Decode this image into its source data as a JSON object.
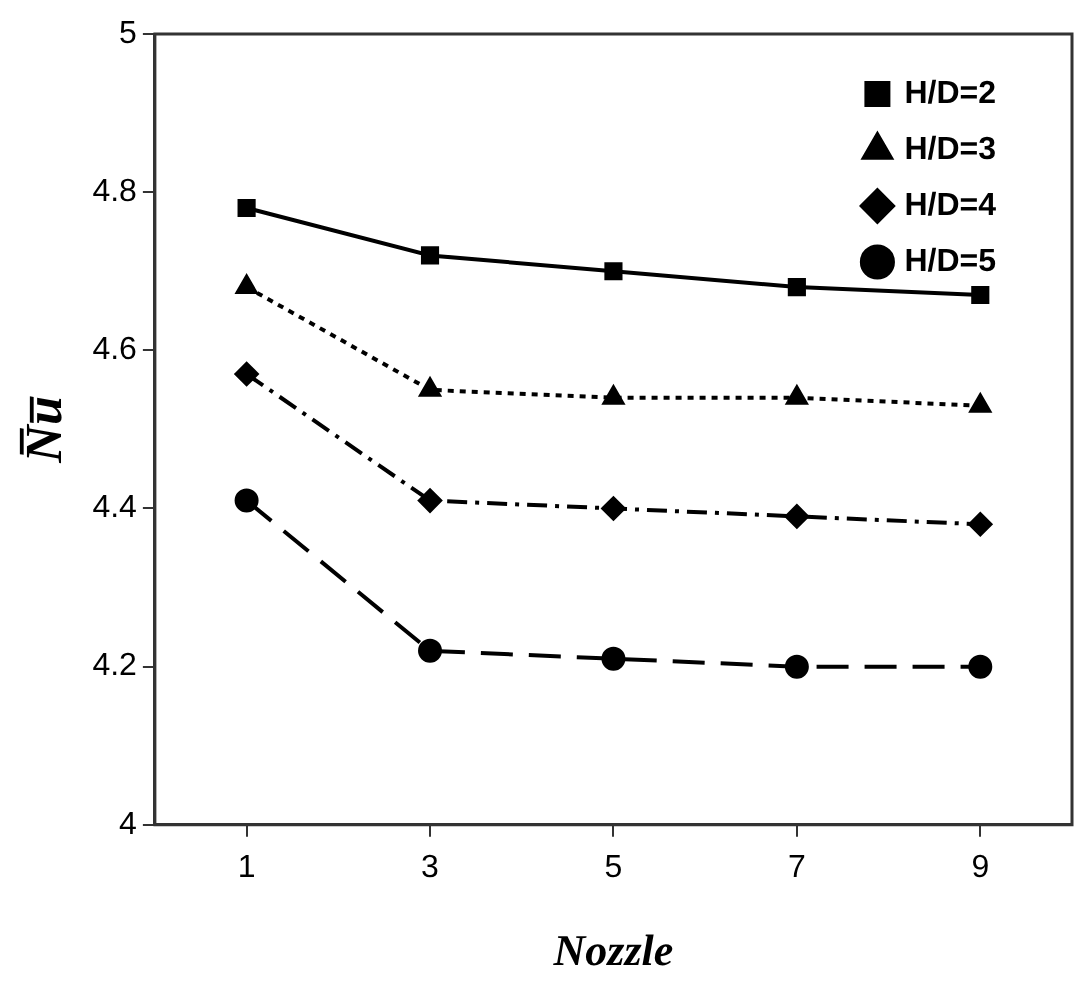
{
  "chart_data": {
    "type": "line",
    "xlabel": "Nozzle",
    "ylabel": "N̅u̅",
    "x": [
      1,
      3,
      5,
      7,
      9
    ],
    "series": [
      {
        "name": "H/D=2",
        "color": "#000000",
        "marker": "square",
        "line_style": "solid",
        "values": [
          4.78,
          4.72,
          4.7,
          4.68,
          4.67
        ]
      },
      {
        "name": "H/D=3",
        "color": "#000000",
        "marker": "triangle",
        "line_style": "dotted",
        "values": [
          4.68,
          4.55,
          4.54,
          4.54,
          4.53
        ]
      },
      {
        "name": "H/D=4",
        "color": "#000000",
        "marker": "diamond",
        "line_style": "dashdot",
        "values": [
          4.57,
          4.41,
          4.4,
          4.39,
          4.38
        ]
      },
      {
        "name": "H/D=5",
        "color": "#000000",
        "marker": "circle",
        "line_style": "dashed",
        "values": [
          4.41,
          4.22,
          4.21,
          4.2,
          4.2
        ]
      }
    ],
    "xlim": [
      0,
      10
    ],
    "xticks": [
      1,
      3,
      5,
      7,
      9
    ],
    "ylim": [
      4,
      5
    ],
    "yticks": [
      4,
      4.2,
      4.4,
      4.6,
      4.8,
      5
    ],
    "grid": false,
    "legend": "top right"
  }
}
